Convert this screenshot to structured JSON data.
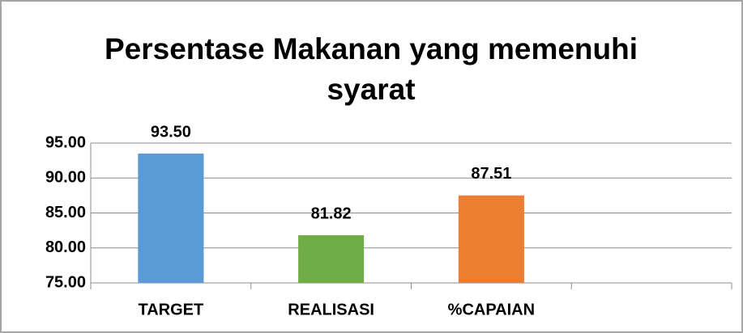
{
  "chart_data": {
    "type": "bar",
    "title": "Persentase Makanan yang memenuhi syarat",
    "categories": [
      "TARGET",
      "REALISASI",
      "%CAPAIAN",
      null
    ],
    "values": [
      93.5,
      81.82,
      87.51,
      null
    ],
    "value_labels": [
      "93.50",
      "81.82",
      "87.51",
      null
    ],
    "colors": [
      "#5b9bd5",
      "#70ad47",
      "#ed7d31",
      null
    ],
    "ylim": [
      75,
      95
    ],
    "yticks": [
      {
        "value": 75,
        "label": "75.00"
      },
      {
        "value": 80,
        "label": "80.00"
      },
      {
        "value": 85,
        "label": "85.00"
      },
      {
        "value": 90,
        "label": "90.00"
      },
      {
        "value": 95,
        "label": "95.00"
      }
    ],
    "grid": true
  }
}
